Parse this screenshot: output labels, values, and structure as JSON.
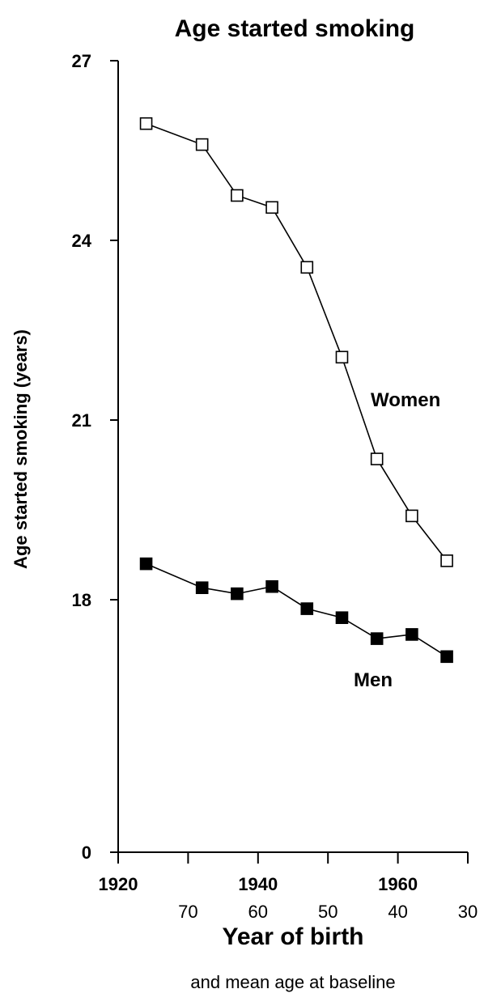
{
  "chart_data": {
    "type": "line",
    "title": "Age started smoking",
    "ylabel": "Age started smoking (years)",
    "xlabel": "Year of birth",
    "xlabel_secondary": "and mean age at baseline",
    "xlim": [
      1920,
      1970
    ],
    "y_ticks": [
      "0",
      "18",
      "21",
      "24",
      "27"
    ],
    "y_tick_values": [
      0,
      18,
      21,
      24,
      27
    ],
    "x_ticks": [
      "1920",
      "1940",
      "1960"
    ],
    "x_tick_values": [
      1920,
      1940,
      1960
    ],
    "x_ticks_secondary": [
      "70",
      "60",
      "50",
      "40",
      "30"
    ],
    "x_ticks_secondary_positions": [
      1930,
      1940,
      1950,
      1960,
      1970
    ],
    "series": [
      {
        "name": "Women",
        "marker": "open-square",
        "x": [
          1924,
          1932,
          1937,
          1942,
          1947,
          1952,
          1957,
          1962,
          1967
        ],
        "y": [
          25.95,
          25.6,
          24.75,
          24.55,
          23.55,
          22.05,
          20.35,
          19.4,
          18.65
        ]
      },
      {
        "name": "Men",
        "marker": "filled-square",
        "x": [
          1924,
          1932,
          1937,
          1942,
          1947,
          1952,
          1957,
          1962,
          1967
        ],
        "y": [
          18.6,
          18.2,
          18.1,
          18.22,
          17.85,
          17.7,
          17.35,
          17.42,
          17.05
        ]
      }
    ]
  }
}
